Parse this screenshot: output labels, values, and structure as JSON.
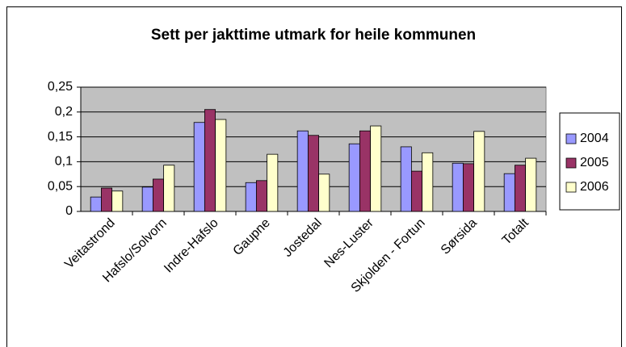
{
  "chart_data": {
    "type": "bar",
    "title": "Sett per jakttime utmark for heile kommunen",
    "categories": [
      "Veitastrond",
      "Hafslo/Solvorn",
      "Indre-Hafslo",
      "Gaupne",
      "Jostedal",
      "Nes-Luster",
      "Skjolden - Fortun",
      "Sørsida",
      "Totalt"
    ],
    "series": [
      {
        "name": "2004",
        "color": "#9999ff",
        "values": [
          0.029,
          0.049,
          0.179,
          0.058,
          0.162,
          0.136,
          0.13,
          0.097,
          0.076
        ]
      },
      {
        "name": "2005",
        "color": "#993366",
        "values": [
          0.047,
          0.065,
          0.205,
          0.062,
          0.153,
          0.162,
          0.081,
          0.096,
          0.093
        ]
      },
      {
        "name": "2006",
        "color": "#ffffcc",
        "values": [
          0.041,
          0.093,
          0.185,
          0.115,
          0.075,
          0.172,
          0.118,
          0.161,
          0.107
        ]
      }
    ],
    "ylim": [
      0,
      0.25
    ],
    "yticks": [
      0,
      {
        "value": 0.05,
        "label": "0,05"
      },
      {
        "value": 0.1,
        "label": "0,1"
      },
      {
        "value": 0.15,
        "label": "0,15"
      },
      {
        "value": 0.2,
        "label": "0,2"
      },
      {
        "value": 0.25,
        "label": "0,25"
      }
    ],
    "grid": true,
    "legend": "right"
  }
}
